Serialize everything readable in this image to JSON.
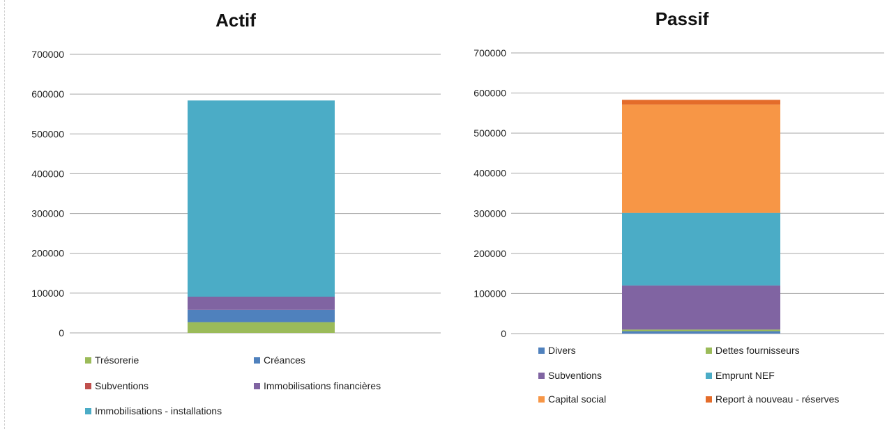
{
  "chart_data": [
    {
      "type": "bar",
      "stacked": true,
      "title": "Actif",
      "ylim": [
        0,
        700000
      ],
      "yticks": [
        "0",
        "100000",
        "200000",
        "300000",
        "400000",
        "500000",
        "600000",
        "700000"
      ],
      "grid": true,
      "legend_position": "bottom",
      "series": [
        {
          "name": "Trésorerie",
          "values": [
            27000
          ],
          "color": "#9bbb59"
        },
        {
          "name": "Créances",
          "values": [
            31000
          ],
          "color": "#4f81bd"
        },
        {
          "name": "Subventions",
          "values": [
            0
          ],
          "color": "#c0504d"
        },
        {
          "name": "Immobilisations financières",
          "values": [
            33000
          ],
          "color": "#8064a2"
        },
        {
          "name": "Immobilisations - installations",
          "values": [
            493000
          ],
          "color": "#4bacc6"
        }
      ]
    },
    {
      "type": "bar",
      "stacked": true,
      "title": "Passif",
      "ylim": [
        0,
        700000
      ],
      "yticks": [
        "0",
        "100000",
        "200000",
        "300000",
        "400000",
        "500000",
        "600000",
        "700000"
      ],
      "grid": true,
      "legend_position": "bottom",
      "series": [
        {
          "name": "Divers",
          "values": [
            6000
          ],
          "color": "#4f81bd"
        },
        {
          "name": "Dettes fournisseurs",
          "values": [
            4000
          ],
          "color": "#9bbb59"
        },
        {
          "name": "Subventions",
          "values": [
            110000
          ],
          "color": "#8064a2"
        },
        {
          "name": "Emprunt NEF",
          "values": [
            181000
          ],
          "color": "#4bacc6"
        },
        {
          "name": "Capital social",
          "values": [
            270000
          ],
          "color": "#f79646"
        },
        {
          "name": "Report à nouveau - réserves",
          "values": [
            12000
          ],
          "color": "#e46c2a"
        }
      ]
    }
  ]
}
